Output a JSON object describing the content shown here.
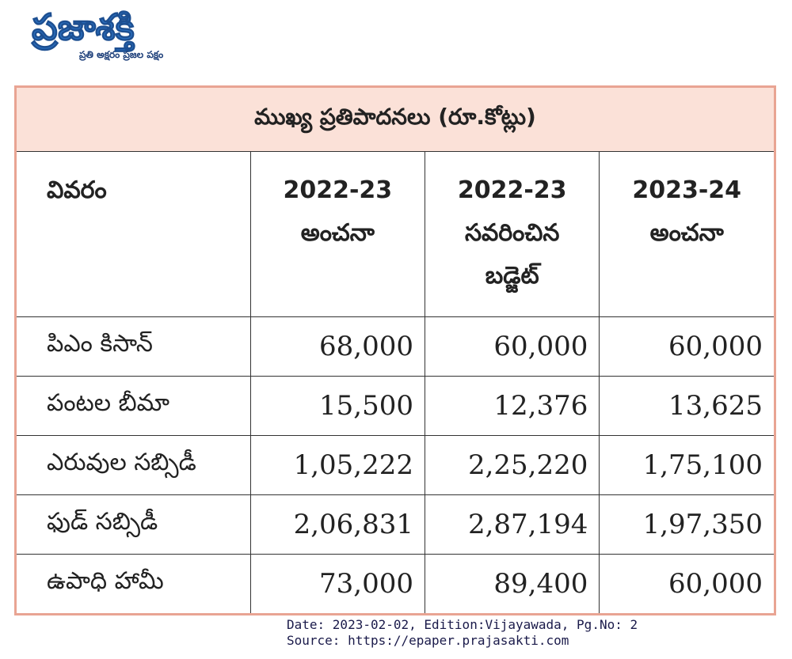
{
  "header": {
    "logo": "ప్రజాశక్తి",
    "tagline": "ప్రతి అక్షరం ప్రజల పక్షం"
  },
  "table": {
    "title": "ముఖ్య ప్రతిపాదనలు (రూ.కోట్లు)",
    "columns": [
      [
        "వివరం"
      ],
      [
        "2022-23",
        "అంచనా"
      ],
      [
        "2022-23",
        "సవరించిన",
        "బడ్జెట్"
      ],
      [
        "2023-24",
        "అంచనా"
      ]
    ],
    "rows": [
      [
        "పిఎం కిసాన్",
        "68,000",
        "60,000",
        "60,000"
      ],
      [
        "పంటల బీమా",
        "15,500",
        "12,376",
        "13,625"
      ],
      [
        "ఎరువుల సబ్సిడీ",
        "1,05,222",
        "2,25,220",
        "1,75,100"
      ],
      [
        "ఫుడ్ సబ్సిడీ",
        "2,06,831",
        "2,87,194",
        "1,97,350"
      ],
      [
        "ఉపాధి హామీ",
        "73,000",
        "89,400",
        "60,000"
      ]
    ]
  },
  "footer": {
    "date": "Date: 2023-02-02, Edition:Vijayawada, Pg.No: 2",
    "source": "Source: https://epaper.prajasakti.com"
  }
}
